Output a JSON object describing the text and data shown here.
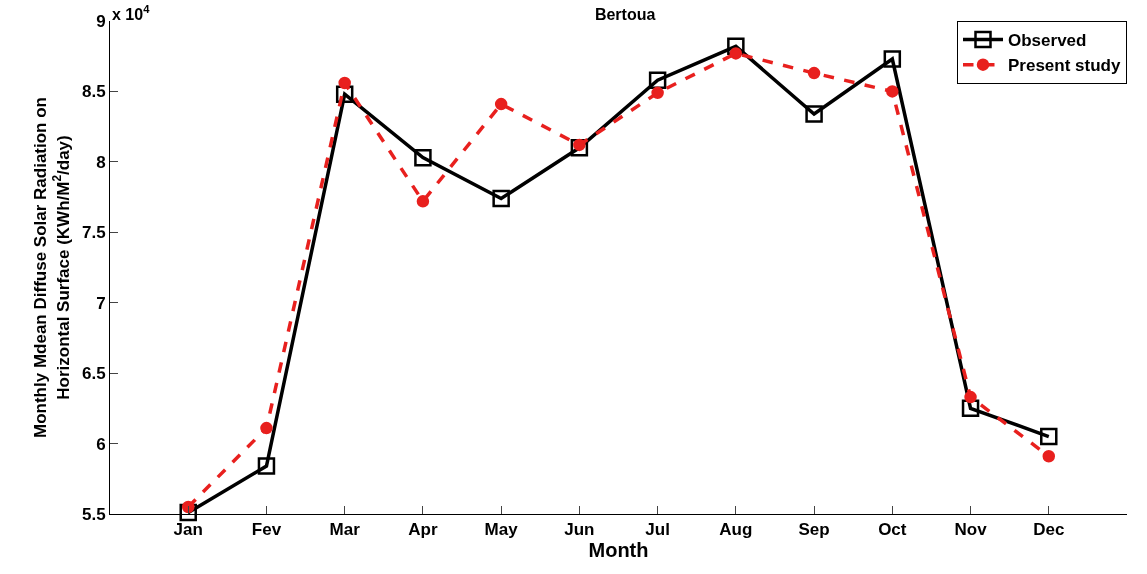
{
  "chart_data": {
    "type": "line",
    "title": "Bertoua",
    "xlabel": "Month",
    "ylabel": "Monthly Mdean Diffuse Solar Radiation on\nHorizontal Surface (KWh/M$^{2}$/day)",
    "annotations": [
      "x 10$^{4}$"
    ],
    "categories": [
      "Jan",
      "Fev",
      "Mar",
      "Apr",
      "May",
      "Jun",
      "Jul",
      "Aug",
      "Sep",
      "Oct",
      "Nov",
      "Dec"
    ],
    "series": [
      {
        "name": "Observed",
        "color": "#000000",
        "marker": "square",
        "line_style": "solid",
        "values": [
          5.51,
          5.84,
          8.48,
          8.03,
          7.74,
          8.1,
          8.58,
          8.82,
          8.34,
          8.73,
          6.25,
          6.05
        ]
      },
      {
        "name": "Present study",
        "color": "#e8201e",
        "marker": "circle",
        "line_style": "dashed",
        "values": [
          5.55,
          6.11,
          8.56,
          7.72,
          8.41,
          8.12,
          8.49,
          8.77,
          8.63,
          8.5,
          6.33,
          5.91
        ]
      }
    ],
    "ylim": [
      5.5,
      9
    ],
    "yticks": [
      5.5,
      6,
      6.5,
      7,
      7.5,
      8,
      8.5,
      9
    ],
    "legend": "top right"
  }
}
